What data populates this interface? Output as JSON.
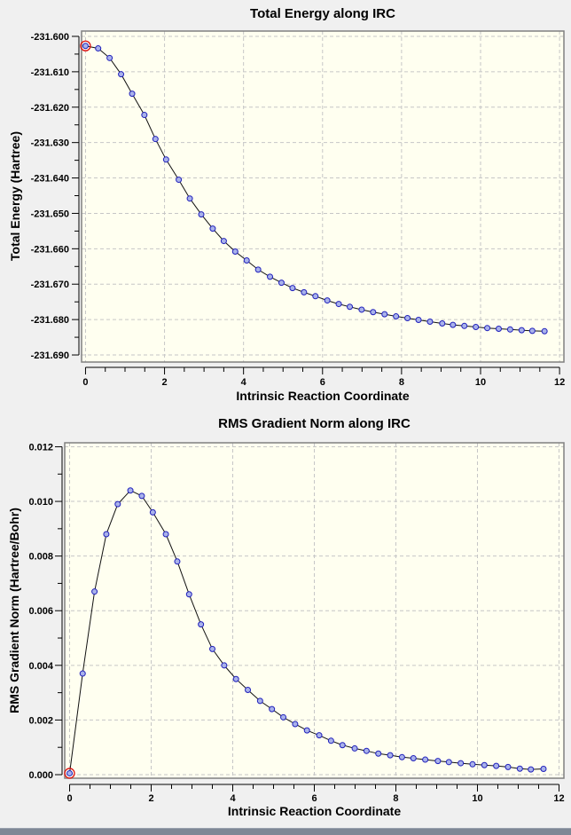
{
  "colors": {
    "page_bg": "#f0f0f0",
    "plot_bg": "#fffff0",
    "frame": "#808080",
    "grid": "#c6c6c6",
    "axis": "#000000",
    "line": "#111111",
    "marker_fill": "#a9b2ea",
    "marker_stroke": "#2020bb",
    "highlight_ring": "#dd1111",
    "bottom_edge": "#7e8795"
  },
  "chart_data": [
    {
      "type": "line",
      "title": "Total Energy along IRC",
      "xlabel": "Intrinsic Reaction Coordinate",
      "ylabel": "Total Energy (Hartree)",
      "legend": "none",
      "grid": "dashed-major",
      "xlim": [
        -0.1,
        12.11
      ],
      "ylim": [
        -231.692,
        -231.5985
      ],
      "xticks": [
        0,
        2,
        4,
        6,
        8,
        10,
        12
      ],
      "xtick_labels": [
        "0",
        "2",
        "4",
        "6",
        "8",
        "10",
        "12"
      ],
      "yticks": [
        -231.6,
        -231.61,
        -231.62,
        -231.63,
        -231.64,
        -231.65,
        -231.66,
        -231.67,
        -231.68,
        -231.69
      ],
      "ytick_labels": [
        "-231.600",
        "-231.610",
        "-231.620",
        "-231.630",
        "-231.640",
        "-231.650",
        "-231.660",
        "-231.670",
        "-231.680",
        "-231.690"
      ],
      "minor_x_step": 0.5,
      "minor_y_halves": true,
      "highlight_index": 0,
      "x": [
        0,
        0.32,
        0.61,
        0.9,
        1.18,
        1.49,
        1.77,
        2.04,
        2.36,
        2.64,
        2.93,
        3.22,
        3.5,
        3.79,
        4.08,
        4.37,
        4.67,
        4.96,
        5.24,
        5.53,
        5.82,
        6.12,
        6.41,
        6.69,
        6.99,
        7.28,
        7.57,
        7.86,
        8.15,
        8.43,
        8.72,
        9.03,
        9.3,
        9.59,
        9.88,
        10.17,
        10.46,
        10.75,
        11.04,
        11.31,
        11.62
      ],
      "y": [
        -231.6027,
        -231.6034,
        -231.6061,
        -231.6107,
        -231.6162,
        -231.6222,
        -231.629,
        -231.6348,
        -231.6405,
        -231.6458,
        -231.6503,
        -231.6543,
        -231.6578,
        -231.6608,
        -231.6633,
        -231.6659,
        -231.6679,
        -231.6696,
        -231.6711,
        -231.6723,
        -231.6734,
        -231.6746,
        -231.6756,
        -231.6764,
        -231.6772,
        -231.6779,
        -231.6785,
        -231.6791,
        -231.6796,
        -231.6801,
        -231.6806,
        -231.6811,
        -231.6815,
        -231.6818,
        -231.6821,
        -231.6824,
        -231.6826,
        -231.6828,
        -231.683,
        -231.6832,
        -231.6833
      ]
    },
    {
      "type": "line",
      "title": "RMS Gradient Norm along IRC",
      "xlabel": "Intrinsic Reaction Coordinate",
      "ylabel": "RMS Gradient Norm (Hartree/Bohr)",
      "legend": "none",
      "grid": "dashed-major",
      "xlim": [
        -0.12,
        12.12
      ],
      "ylim": [
        -0.00013,
        0.012145
      ],
      "xticks": [
        0,
        2,
        4,
        6,
        8,
        10,
        12
      ],
      "xtick_labels": [
        "0",
        "2",
        "4",
        "6",
        "8",
        "10",
        "12"
      ],
      "yticks": [
        0.0,
        0.002,
        0.004,
        0.006,
        0.008,
        0.01,
        0.012
      ],
      "ytick_labels": [
        "0.000",
        "0.002",
        "0.004",
        "0.006",
        "0.008",
        "0.010",
        "0.012"
      ],
      "minor_x_step": 0.5,
      "minor_y_halves": true,
      "highlight_index": 0,
      "x": [
        0,
        0.32,
        0.61,
        0.9,
        1.18,
        1.49,
        1.77,
        2.04,
        2.36,
        2.64,
        2.93,
        3.22,
        3.5,
        3.79,
        4.08,
        4.37,
        4.67,
        4.96,
        5.24,
        5.53,
        5.82,
        6.12,
        6.41,
        6.69,
        6.99,
        7.28,
        7.57,
        7.86,
        8.15,
        8.43,
        8.72,
        9.03,
        9.3,
        9.59,
        9.88,
        10.17,
        10.46,
        10.75,
        11.04,
        11.31,
        11.62
      ],
      "y": [
        5e-05,
        0.0037,
        0.0067,
        0.0088,
        0.0099,
        0.0104,
        0.0102,
        0.0096,
        0.0088,
        0.0078,
        0.0066,
        0.0055,
        0.0046,
        0.004,
        0.0035,
        0.0031,
        0.0027,
        0.0024,
        0.0021,
        0.00185,
        0.00162,
        0.00144,
        0.00124,
        0.00108,
        0.00096,
        0.00087,
        0.00077,
        0.00071,
        0.00064,
        0.0006,
        0.00055,
        0.0005,
        0.00046,
        0.00042,
        0.00038,
        0.00035,
        0.00032,
        0.00028,
        0.00022,
        0.00019,
        0.00021
      ]
    }
  ]
}
